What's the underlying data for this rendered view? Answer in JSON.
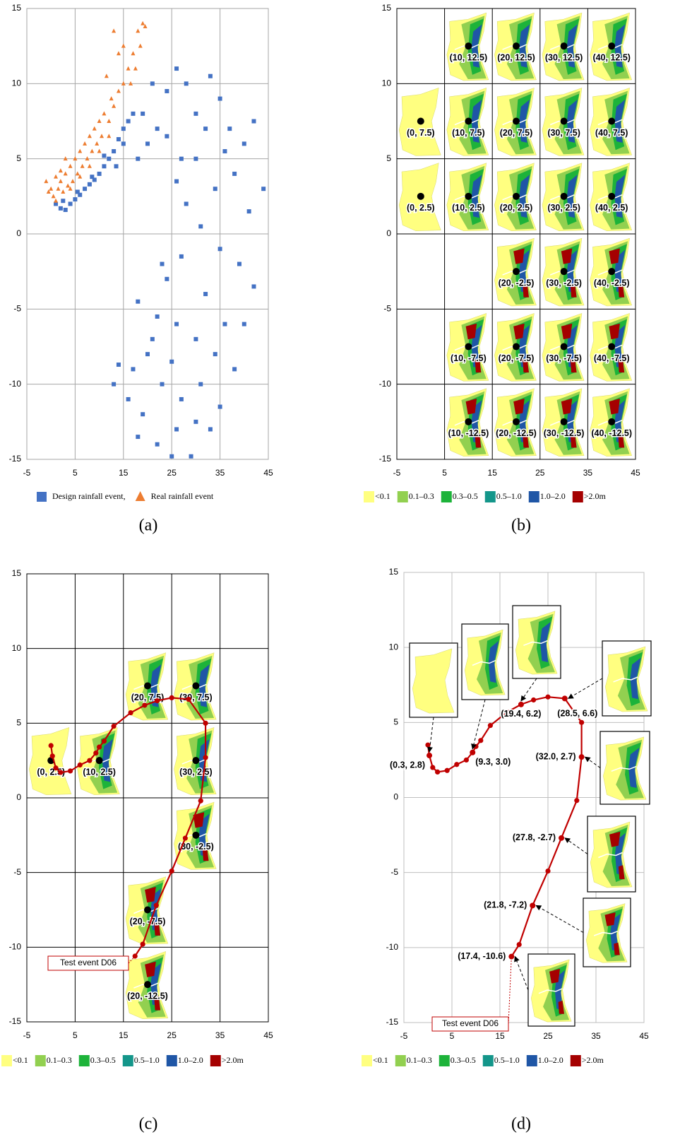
{
  "chart_data": [
    {
      "type": "scatter",
      "caption": "(a)",
      "xlim": [
        -5,
        45
      ],
      "ylim": [
        -15,
        15
      ],
      "xticks": [
        -5,
        5,
        15,
        25,
        35,
        45
      ],
      "yticks": [
        -15,
        -10,
        -5,
        0,
        5,
        10,
        15
      ],
      "grid": true,
      "grid_color": "#a6a6a6",
      "series": [
        {
          "name": "Design rainfall event,",
          "color": "#4472c4",
          "marker": "square",
          "x": [
            1,
            2,
            3,
            4,
            5,
            6,
            7,
            8,
            9,
            10,
            11,
            12,
            13,
            14,
            15,
            16,
            17,
            2.5,
            5.5,
            8.5,
            11,
            13.5,
            15,
            19,
            21,
            22,
            24,
            26,
            28,
            30,
            33,
            35,
            37,
            40,
            42,
            44,
            38,
            41,
            34,
            30,
            28,
            31,
            35,
            39,
            42,
            27,
            24,
            32,
            36,
            40,
            22,
            26,
            30,
            34,
            38,
            20,
            17,
            14,
            13,
            16,
            19,
            23,
            27,
            31,
            35,
            18,
            22,
            26,
            30,
            25,
            29,
            33,
            21,
            25,
            18,
            23,
            20,
            18,
            24,
            27,
            32,
            36,
            26
          ],
          "values": [
            2,
            1.7,
            1.6,
            2,
            2.3,
            2.6,
            3,
            3.3,
            3.6,
            4,
            4.5,
            5,
            5.5,
            6.3,
            7,
            7.5,
            8,
            2.2,
            2.8,
            3.8,
            5.2,
            4.5,
            6,
            8,
            10,
            7,
            9.5,
            11,
            10,
            8,
            10.5,
            9,
            7,
            6,
            7.5,
            3,
            4,
            1.5,
            3,
            5,
            2,
            0.5,
            -1,
            -2,
            -3.5,
            -1.5,
            -3,
            -4,
            -6,
            -6,
            -5.5,
            -6,
            -7,
            -8,
            -9,
            -8,
            -9,
            -8.7,
            -10,
            -11,
            -12,
            -10,
            -11,
            -10,
            -11.5,
            -13.5,
            -14,
            -13,
            -12.5,
            -14.8,
            -14.8,
            -13,
            -7,
            -8.5,
            -4.5,
            -2,
            6,
            5,
            6.5,
            5,
            7,
            5.5,
            3.5
          ]
        },
        {
          "name": "Real rainfall event",
          "color": "#ed7d31",
          "marker": "triangle",
          "x": [
            -1,
            0,
            0.5,
            1,
            1.5,
            2,
            2.5,
            3,
            3.5,
            4,
            4.5,
            5,
            5.5,
            6,
            6.5,
            7,
            7.5,
            8,
            8.5,
            9,
            9.5,
            10,
            10.5,
            11,
            11.5,
            12,
            12.5,
            13,
            13,
            14,
            14,
            15,
            15,
            16,
            16.5,
            17,
            17.5,
            18,
            18.5,
            19,
            19.5,
            -0.5,
            1,
            3,
            2,
            4,
            6,
            8,
            10,
            12
          ],
          "values": [
            3.5,
            3,
            2.5,
            2.2,
            3,
            3.5,
            2.8,
            4,
            3.2,
            4.5,
            3.5,
            5,
            4,
            5.5,
            4.5,
            6,
            5,
            6.5,
            5.5,
            7,
            6,
            7.5,
            6.5,
            8,
            10.5,
            7.5,
            9,
            8.5,
            13.5,
            9.5,
            12,
            10,
            12.5,
            11,
            10,
            12,
            11,
            13.5,
            12.5,
            14,
            13.8,
            2.8,
            3.8,
            5,
            4.2,
            3,
            3.8,
            4.5,
            5.5,
            6.5
          ]
        }
      ]
    },
    {
      "type": "map-grid",
      "caption": "(b)",
      "xlim": [
        -5,
        45
      ],
      "ylim": [
        -15,
        15
      ],
      "xticks": [
        -5,
        5,
        15,
        25,
        35,
        45
      ],
      "yticks": [
        -15,
        -10,
        -5,
        0,
        5,
        10,
        15
      ],
      "grid": true,
      "grid_color": "#000000",
      "points": [
        {
          "x": 10,
          "y": 12.5,
          "label": "(10, 12.5)"
        },
        {
          "x": 20,
          "y": 12.5,
          "label": "(20, 12.5)"
        },
        {
          "x": 30,
          "y": 12.5,
          "label": "(30, 12.5)"
        },
        {
          "x": 40,
          "y": 12.5,
          "label": "(40, 12.5)"
        },
        {
          "x": 0,
          "y": 7.5,
          "label": "(0, 7.5)"
        },
        {
          "x": 10,
          "y": 7.5,
          "label": "(10, 7.5)"
        },
        {
          "x": 20,
          "y": 7.5,
          "label": "(20, 7.5)"
        },
        {
          "x": 30,
          "y": 7.5,
          "label": "(30, 7.5)"
        },
        {
          "x": 40,
          "y": 7.5,
          "label": "(40, 7.5)"
        },
        {
          "x": 0,
          "y": 2.5,
          "label": "(0, 2.5)"
        },
        {
          "x": 10,
          "y": 2.5,
          "label": "(10, 2.5)"
        },
        {
          "x": 20,
          "y": 2.5,
          "label": "(20, 2.5)"
        },
        {
          "x": 30,
          "y": 2.5,
          "label": "(30, 2.5)"
        },
        {
          "x": 40,
          "y": 2.5,
          "label": "(40, 2.5)"
        },
        {
          "x": 20,
          "y": -2.5,
          "label": "(20, -2.5)"
        },
        {
          "x": 30,
          "y": -2.5,
          "label": "(30, -2.5)"
        },
        {
          "x": 40,
          "y": -2.5,
          "label": "(40, -2.5)"
        },
        {
          "x": 10,
          "y": -7.5,
          "label": "(10, -7.5)"
        },
        {
          "x": 20,
          "y": -7.5,
          "label": "(20, -7.5)"
        },
        {
          "x": 30,
          "y": -7.5,
          "label": "(30, -7.5)"
        },
        {
          "x": 40,
          "y": -7.5,
          "label": "(40, -7.5)"
        },
        {
          "x": 10,
          "y": -12.5,
          "label": "(10, -12.5)"
        },
        {
          "x": 20,
          "y": -12.5,
          "label": "(20, -12.5)"
        },
        {
          "x": 30,
          "y": -12.5,
          "label": "(30, -12.5)"
        },
        {
          "x": 40,
          "y": -12.5,
          "label": "(40, -12.5)"
        }
      ],
      "legend": [
        {
          "label": "<0.1",
          "color": "#ffff80"
        },
        {
          "label": "0.1–0.3",
          "color": "#92d050"
        },
        {
          "label": "0.3–0.5",
          "color": "#1db33a"
        },
        {
          "label": "0.5–1.0",
          "color": "#14968a"
        },
        {
          "label": "1.0–2.0",
          "color": "#1f56a6"
        },
        {
          "label": ">2.0m",
          "color": "#a50000"
        }
      ]
    },
    {
      "type": "trajectory",
      "caption": "(c)",
      "xlim": [
        -5,
        45
      ],
      "ylim": [
        -15,
        15
      ],
      "xticks": [
        -5,
        5,
        15,
        25,
        35,
        45
      ],
      "yticks": [
        -15,
        -10,
        -5,
        0,
        5,
        10,
        15
      ],
      "grid": true,
      "grid_color": "#000000",
      "annotation": "Test event D06",
      "path": {
        "color": "#c00000",
        "x": [
          17.4,
          19,
          21.8,
          25,
          27.8,
          31,
          32,
          32,
          28.5,
          25,
          22,
          19.4,
          16.5,
          13,
          11,
          10,
          9.3,
          8,
          6,
          4,
          2,
          1,
          0.3,
          0
        ],
        "values": [
          -10.6,
          -9.8,
          -7.2,
          -4.9,
          -2.7,
          -0.2,
          2.7,
          5,
          6.6,
          6.7,
          6.5,
          6.2,
          5.7,
          4.8,
          3.8,
          3.4,
          3.0,
          2.5,
          2.2,
          1.8,
          1.7,
          2.0,
          2.8,
          3.5
        ]
      },
      "points": [
        {
          "x": 20,
          "y": 7.5,
          "label": "(20, 7.5)"
        },
        {
          "x": 30,
          "y": 7.5,
          "label": "(30, 7.5)"
        },
        {
          "x": 0,
          "y": 2.5,
          "label": "(0, 2.5)"
        },
        {
          "x": 10,
          "y": 2.5,
          "label": "(10, 2.5)"
        },
        {
          "x": 30,
          "y": 2.5,
          "label": "(30, 2.5)"
        },
        {
          "x": 30,
          "y": -2.5,
          "label": "(30, -2.5)"
        },
        {
          "x": 20,
          "y": -7.5,
          "label": "(20, -7.5)"
        },
        {
          "x": 20,
          "y": -12.5,
          "label": "(20, -12.5)"
        }
      ],
      "legend": [
        {
          "label": "<0.1",
          "color": "#ffff80"
        },
        {
          "label": "0.1–0.3",
          "color": "#92d050"
        },
        {
          "label": "0.3–0.5",
          "color": "#1db33a"
        },
        {
          "label": "0.5–1.0",
          "color": "#14968a"
        },
        {
          "label": "1.0–2.0",
          "color": "#1f56a6"
        },
        {
          "label": ">2.0m",
          "color": "#a50000"
        }
      ]
    },
    {
      "type": "trajectory-insets",
      "caption": "(d)",
      "xlim": [
        -5,
        45
      ],
      "ylim": [
        -15,
        15
      ],
      "xticks": [
        -5,
        5,
        15,
        25,
        35,
        45
      ],
      "yticks": [
        -15,
        -10,
        -5,
        0,
        5,
        10,
        15
      ],
      "grid": true,
      "grid_color": "#bfbfbf",
      "annotation": "Test event D06",
      "path": {
        "color": "#c00000",
        "x": [
          17.4,
          19,
          21.8,
          25,
          27.8,
          31,
          32,
          32,
          28.5,
          25,
          22,
          19.4,
          16.5,
          13,
          11,
          10,
          9.3,
          8,
          6,
          4,
          2,
          1,
          0.3,
          0
        ],
        "values": [
          -10.6,
          -9.8,
          -7.2,
          -4.9,
          -2.7,
          -0.2,
          2.7,
          5,
          6.6,
          6.7,
          6.5,
          6.2,
          5.7,
          4.8,
          3.8,
          3.4,
          3.0,
          2.5,
          2.2,
          1.8,
          1.7,
          2.0,
          2.8,
          3.5
        ]
      },
      "points": [
        {
          "x": 0.3,
          "y": 2.8,
          "label": "(0.3, 2.8)"
        },
        {
          "x": 9.3,
          "y": 3.0,
          "label": "(9.3, 3.0)"
        },
        {
          "x": 19.4,
          "y": 6.2,
          "label": "(19.4, 6.2)"
        },
        {
          "x": 28.5,
          "y": 6.6,
          "label": "(28.5, 6.6)"
        },
        {
          "x": 32.0,
          "y": 2.7,
          "label": "(32.0, 2.7)"
        },
        {
          "x": 27.8,
          "y": -2.7,
          "label": "(27.8, -2.7)"
        },
        {
          "x": 21.8,
          "y": -7.2,
          "label": "(21.8, -7.2)"
        },
        {
          "x": 17.4,
          "y": -10.6,
          "label": "(17.4, -10.6)"
        }
      ],
      "legend": [
        {
          "label": "<0.1",
          "color": "#ffff80"
        },
        {
          "label": "0.1–0.3",
          "color": "#92d050"
        },
        {
          "label": "0.3–0.5",
          "color": "#1db33a"
        },
        {
          "label": "0.5–1.0",
          "color": "#14968a"
        },
        {
          "label": "1.0–2.0",
          "color": "#1f56a6"
        },
        {
          "label": ">2.0m",
          "color": "#a50000"
        }
      ]
    }
  ]
}
